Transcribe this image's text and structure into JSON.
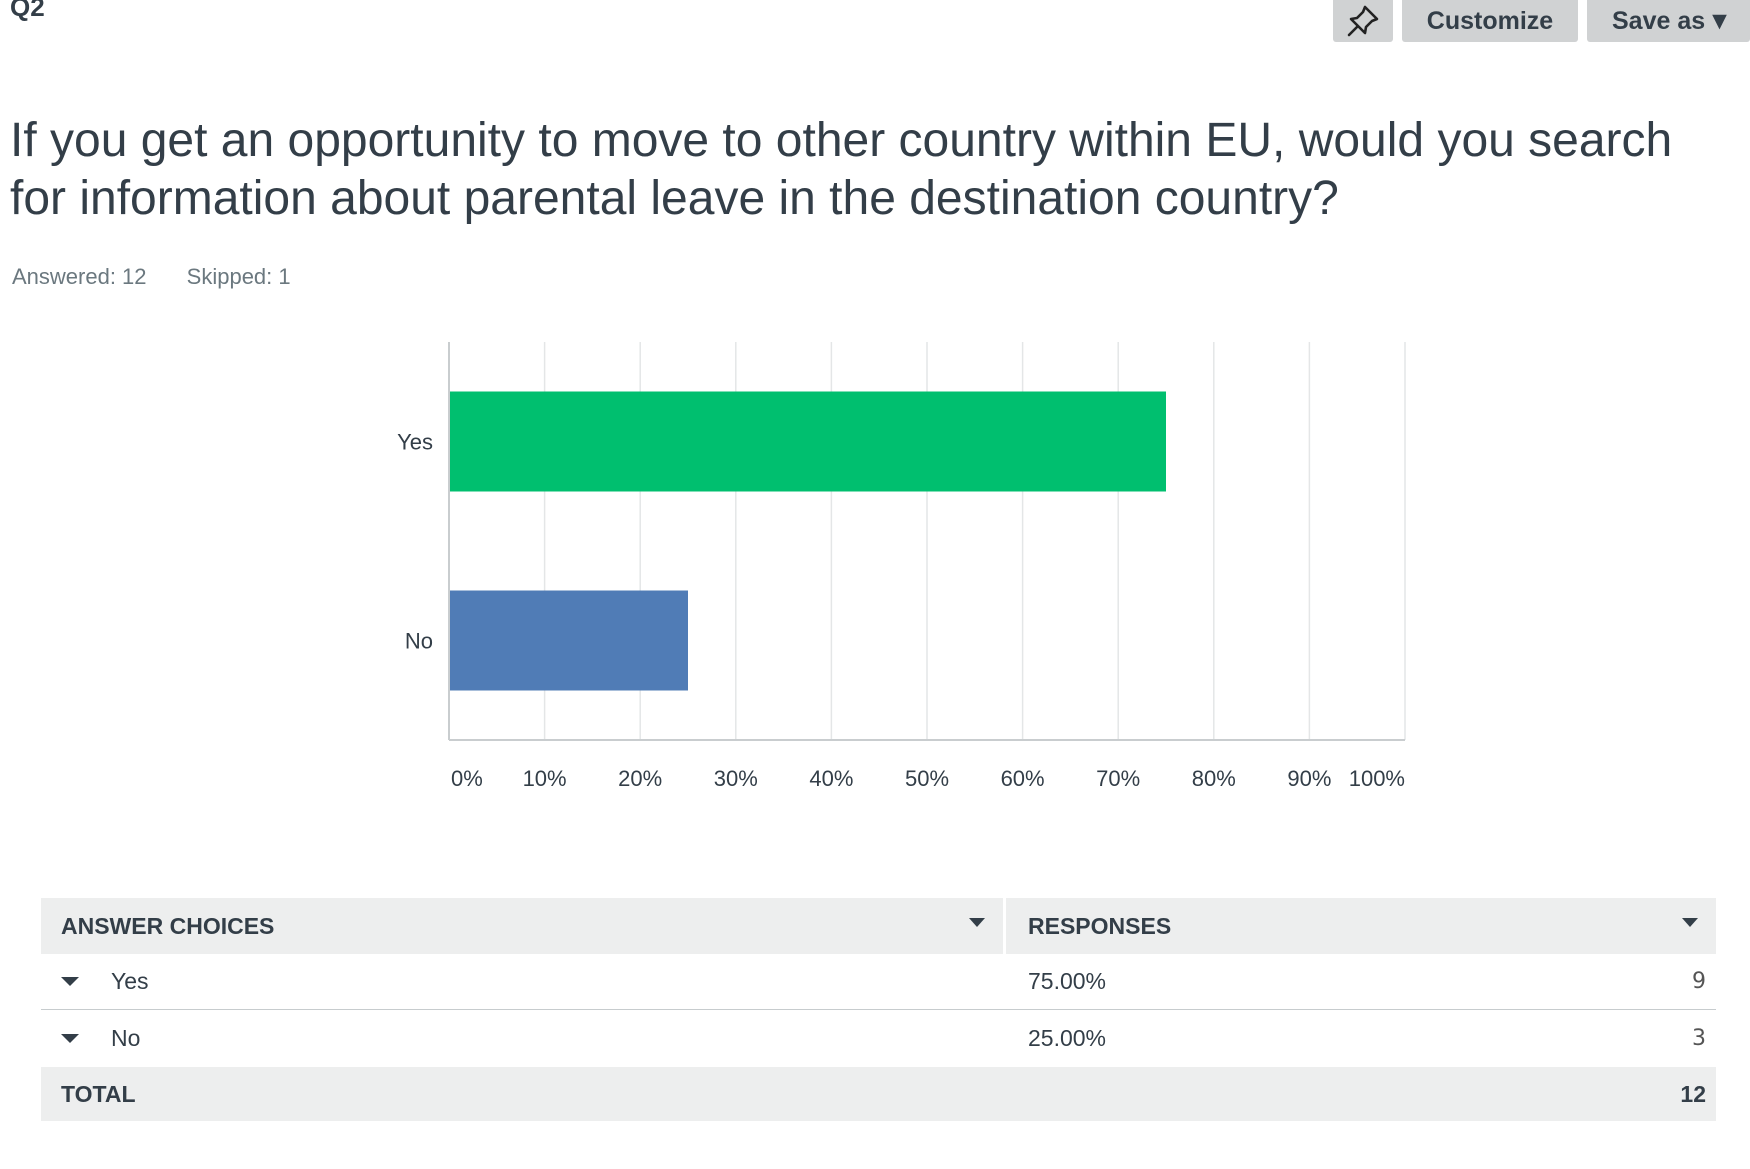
{
  "question_number": "Q2",
  "toolbar": {
    "pin_icon": "pin-icon",
    "customize_label": "Customize",
    "save_label": "Save as",
    "save_caret": "▼"
  },
  "question_text": "If you get an opportunity to move to other country within EU, would you search for information about parental leave in the destination country?",
  "stats": {
    "answered": "Answered: 12",
    "skipped": "Skipped: 1"
  },
  "chart_data": {
    "type": "bar",
    "orientation": "horizontal",
    "categories": [
      "Yes",
      "No"
    ],
    "values": [
      75,
      25
    ],
    "colors": [
      "#00bf6f",
      "#507cb6"
    ],
    "xlim": [
      0,
      100
    ],
    "xticks": [
      "0%",
      "10%",
      "20%",
      "30%",
      "40%",
      "50%",
      "60%",
      "70%",
      "80%",
      "90%",
      "100%"
    ],
    "grid": true
  },
  "table": {
    "headers": [
      "ANSWER CHOICES",
      "RESPONSES"
    ],
    "rows": [
      {
        "choice": "Yes",
        "percent": "75.00%",
        "count": "9"
      },
      {
        "choice": "No",
        "percent": "25.00%",
        "count": "3"
      }
    ],
    "total_label": "TOTAL",
    "total_value": "12"
  }
}
